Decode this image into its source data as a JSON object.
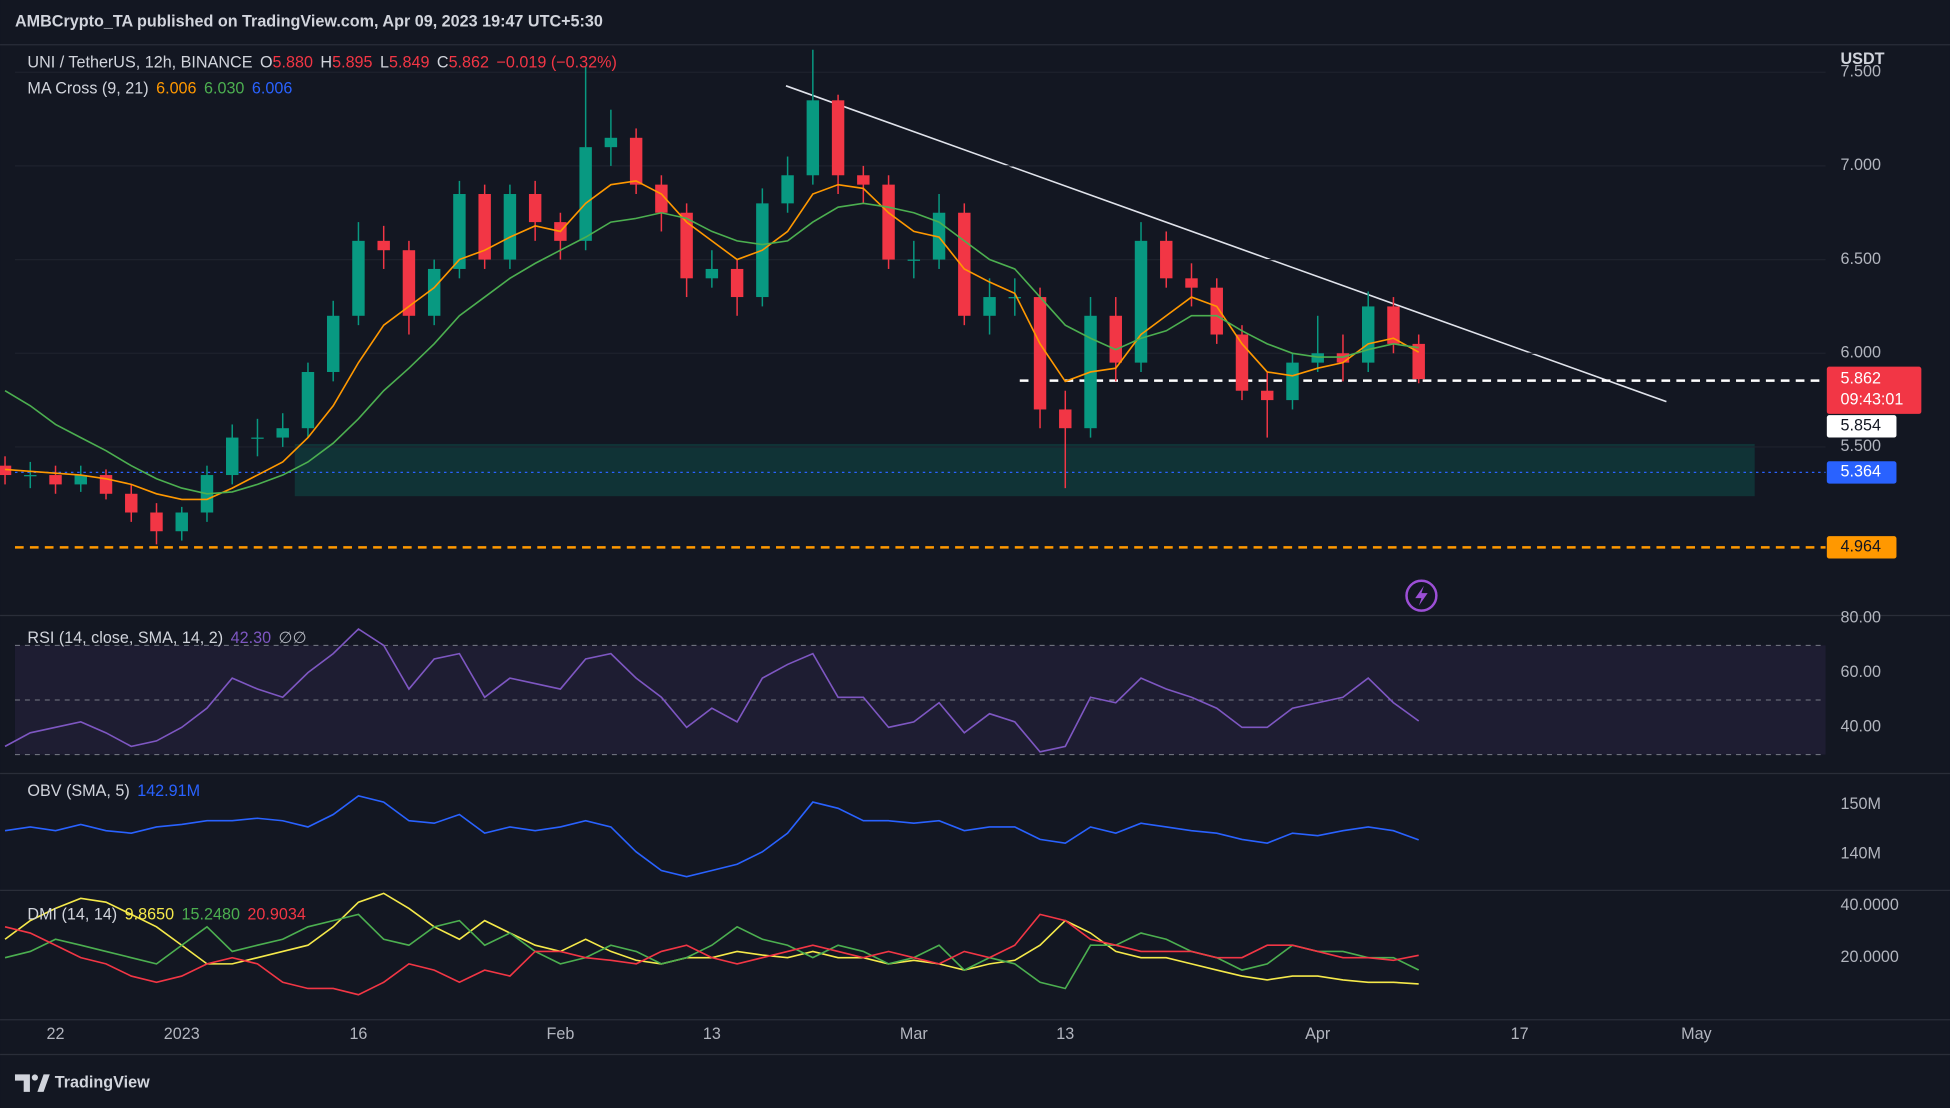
{
  "header": {
    "publisher": "AMBCrypto_TA published on TradingView.com, Apr 09, 2023 19:47 UTC+5:30"
  },
  "footer": {
    "brand": "TradingView"
  },
  "chart_data": [
    {
      "type": "candlestick",
      "unit": "USDT",
      "legend": [
        {
          "name": "UNI / TetherUS, 12h, BINANCE",
          "values": [
            {
              "text": "O",
              "color": "#d1d4dc"
            },
            {
              "text": "5.880",
              "color": "#f23645"
            },
            {
              "text": "H",
              "color": "#d1d4dc"
            },
            {
              "text": "5.895",
              "color": "#f23645"
            },
            {
              "text": "L",
              "color": "#d1d4dc"
            },
            {
              "text": "5.849",
              "color": "#f23645"
            },
            {
              "text": "C",
              "color": "#d1d4dc"
            },
            {
              "text": "5.862",
              "color": "#f23645"
            },
            {
              "text": "−0.019 (−0.32%)",
              "color": "#f23645"
            }
          ]
        },
        {
          "name": "MA Cross (9, 21)",
          "values": [
            {
              "text": "6.006",
              "color": "#ff9800"
            },
            {
              "text": "6.030",
              "color": "#4caf50"
            },
            {
              "text": "6.006",
              "color": "#2962ff"
            }
          ]
        }
      ],
      "categories": [
        null,
        null,
        "22",
        null,
        null,
        null,
        null,
        "2023",
        null,
        null,
        null,
        null,
        null,
        null,
        "16",
        null,
        null,
        null,
        null,
        null,
        null,
        null,
        "Feb",
        null,
        null,
        null,
        null,
        null,
        "13",
        null,
        null,
        null,
        null,
        null,
        null,
        null,
        "Mar",
        null,
        null,
        null,
        null,
        null,
        "13",
        null,
        null,
        null,
        null,
        null,
        null,
        null,
        null,
        null,
        "Apr",
        null,
        null,
        null,
        null,
        null,
        null,
        null,
        "17",
        null,
        null,
        null,
        null,
        null,
        null,
        "May"
      ],
      "open": [
        5.4,
        5.35,
        5.35,
        5.3,
        5.35,
        5.25,
        5.15,
        5.05,
        5.15,
        5.35,
        5.55,
        5.55,
        5.6,
        5.9,
        6.2,
        6.6,
        6.55,
        6.2,
        6.45,
        6.85,
        6.5,
        6.85,
        6.7,
        6.6,
        7.1,
        7.15,
        6.9,
        6.75,
        6.4,
        6.45,
        6.3,
        6.8,
        6.95,
        7.35,
        6.95,
        6.9,
        6.5,
        6.5,
        6.75,
        6.2,
        6.3,
        6.3,
        5.7,
        5.6,
        6.2,
        5.95,
        6.6,
        6.4,
        6.35,
        6.1,
        5.8,
        5.75,
        5.95,
        6.0,
        5.95,
        6.25,
        6.05,
        null,
        null,
        null,
        null,
        null,
        null,
        null,
        null,
        null,
        null,
        null
      ],
      "high": [
        5.45,
        5.42,
        5.4,
        5.4,
        5.38,
        5.3,
        5.2,
        5.18,
        5.4,
        5.62,
        5.65,
        5.68,
        5.95,
        6.28,
        6.7,
        6.68,
        6.6,
        6.5,
        6.92,
        6.9,
        6.9,
        6.92,
        6.75,
        7.53,
        7.3,
        7.2,
        6.95,
        6.8,
        6.55,
        6.5,
        6.88,
        7.05,
        7.62,
        7.38,
        7.0,
        6.95,
        6.6,
        6.85,
        6.8,
        6.4,
        6.4,
        6.35,
        5.8,
        6.3,
        6.3,
        6.7,
        6.65,
        6.48,
        6.4,
        6.15,
        5.9,
        6.0,
        6.2,
        6.1,
        6.33,
        6.3,
        6.1,
        null,
        null,
        null,
        null,
        null,
        null,
        null,
        null,
        null,
        null,
        null
      ],
      "low": [
        5.3,
        5.28,
        5.25,
        5.26,
        5.22,
        5.1,
        4.98,
        5.0,
        5.1,
        5.3,
        5.45,
        5.5,
        5.55,
        5.85,
        6.15,
        6.45,
        6.1,
        6.15,
        6.4,
        6.45,
        6.45,
        6.6,
        6.5,
        6.55,
        7.0,
        6.85,
        6.65,
        6.3,
        6.35,
        6.2,
        6.25,
        6.75,
        6.9,
        6.85,
        6.8,
        6.45,
        6.4,
        6.45,
        6.15,
        6.1,
        6.2,
        5.6,
        5.28,
        5.55,
        5.85,
        5.9,
        6.35,
        6.25,
        6.05,
        5.75,
        5.55,
        5.7,
        5.9,
        5.85,
        5.9,
        6.0,
        5.84,
        null,
        null,
        null,
        null,
        null,
        null,
        null,
        null,
        null,
        null,
        null
      ],
      "close": [
        5.35,
        5.35,
        5.3,
        5.35,
        5.25,
        5.15,
        5.05,
        5.15,
        5.35,
        5.55,
        5.55,
        5.6,
        5.9,
        6.2,
        6.6,
        6.55,
        6.2,
        6.45,
        6.85,
        6.5,
        6.85,
        6.7,
        6.6,
        7.1,
        7.15,
        6.9,
        6.75,
        6.4,
        6.45,
        6.3,
        6.8,
        6.95,
        7.35,
        6.95,
        6.9,
        6.5,
        6.5,
        6.75,
        6.2,
        6.3,
        6.3,
        5.7,
        5.6,
        6.2,
        5.95,
        6.6,
        6.4,
        6.35,
        6.1,
        5.8,
        5.75,
        5.95,
        6.0,
        5.95,
        6.25,
        6.05,
        5.862,
        null,
        null,
        null,
        null,
        null,
        null,
        null,
        null,
        null,
        null,
        null
      ],
      "up_color": "#089981",
      "down_color": "#f23645",
      "series": [
        {
          "color": "#ff9800",
          "values": [
            5.38,
            5.37,
            5.36,
            5.35,
            5.33,
            5.3,
            5.25,
            5.22,
            5.22,
            5.28,
            5.35,
            5.42,
            5.55,
            5.72,
            5.95,
            6.15,
            6.25,
            6.35,
            6.5,
            6.55,
            6.62,
            6.68,
            6.65,
            6.8,
            6.9,
            6.92,
            6.85,
            6.7,
            6.6,
            6.5,
            6.55,
            6.65,
            6.85,
            6.9,
            6.88,
            6.75,
            6.65,
            6.62,
            6.45,
            6.38,
            6.32,
            6.05,
            5.85,
            5.9,
            5.92,
            6.1,
            6.2,
            6.3,
            6.25,
            6.05,
            5.9,
            5.88,
            5.92,
            5.95,
            6.05,
            6.08,
            6.006,
            null,
            null,
            null,
            null,
            null,
            null,
            null,
            null,
            null,
            null,
            null
          ]
        },
        {
          "color": "#4caf50",
          "values": [
            5.8,
            5.72,
            5.62,
            5.55,
            5.48,
            5.4,
            5.33,
            5.28,
            5.25,
            5.26,
            5.3,
            5.35,
            5.42,
            5.52,
            5.65,
            5.8,
            5.92,
            6.05,
            6.2,
            6.3,
            6.4,
            6.48,
            6.55,
            6.62,
            6.7,
            6.72,
            6.75,
            6.72,
            6.65,
            6.6,
            6.58,
            6.6,
            6.7,
            6.78,
            6.8,
            6.78,
            6.75,
            6.7,
            6.6,
            6.5,
            6.45,
            6.3,
            6.15,
            6.08,
            6.02,
            6.08,
            6.12,
            6.2,
            6.2,
            6.12,
            6.05,
            6.0,
            5.98,
            5.98,
            6.02,
            6.05,
            6.03,
            null,
            null,
            null,
            null,
            null,
            null,
            null,
            null,
            null,
            null,
            null
          ]
        }
      ],
      "last_price": {
        "value": 5.862,
        "countdown": "09:43:01",
        "color": "#f23645",
        "text_color": "#ffffff"
      },
      "price_lines": [
        {
          "value": 5.854,
          "color": "#ffffff",
          "text_color": "#131722",
          "dash": "dashed"
        },
        {
          "value": 5.364,
          "color": "#2962ff",
          "text_color": "#ffffff",
          "dash": "dotted"
        },
        {
          "value": 4.964,
          "color": "#ff9800",
          "text_color": "#131722",
          "dash": "dashed"
        }
      ],
      "ylim": [
        4.6,
        7.62
      ],
      "yticks": [
        {
          "value": 7.5,
          "label": "7.500"
        },
        {
          "value": 7,
          "label": "7.000"
        },
        {
          "value": 6.5,
          "label": "6.500"
        },
        {
          "value": 6,
          "label": "6.000"
        },
        {
          "value": 5.5,
          "label": "5.500"
        }
      ],
      "grid": true
    },
    {
      "type": "line",
      "legend": [
        {
          "name": "RSI (14, close, SMA, 14, 2)",
          "values": [
            {
              "text": "42.30",
              "color": "#7e57c2"
            },
            {
              "text": "∅",
              "color": "#b2b5be"
            },
            {
              "text": "∅",
              "color": "#b2b5be"
            }
          ]
        }
      ],
      "series": [
        {
          "color": "#7e57c2",
          "values": [
            33,
            38,
            40,
            42,
            38,
            33,
            35,
            40,
            47,
            58,
            54,
            51,
            60,
            67,
            76,
            70,
            54,
            65,
            67,
            51,
            58,
            56,
            54,
            65,
            67,
            58,
            51,
            40,
            47,
            42,
            58,
            63,
            67,
            51,
            51,
            40,
            42,
            49,
            38,
            45,
            42,
            31,
            33,
            51,
            49,
            58,
            54,
            51,
            47,
            40,
            40,
            47,
            49,
            51,
            58,
            49,
            42.3,
            null,
            null,
            null,
            null,
            null,
            null,
            null,
            null,
            null,
            null,
            null
          ]
        }
      ],
      "levels": [
        70,
        50,
        30
      ],
      "band_color": "rgba(126,87,194,0.10)",
      "ylim": [
        24,
        80
      ],
      "yticks": [
        {
          "value": 80,
          "label": "80.00"
        },
        {
          "value": 60,
          "label": "60.00"
        },
        {
          "value": 40,
          "label": "40.00"
        }
      ],
      "grid": false
    },
    {
      "type": "line",
      "legend": [
        {
          "name": "OBV (SMA, 5)",
          "values": [
            {
              "text": "142.91M",
              "color": "#2962ff"
            }
          ]
        }
      ],
      "series": [
        {
          "color": "#2962ff",
          "values": [
            144750000,
            145500000,
            144750000,
            146000000,
            144750000,
            144250000,
            145500000,
            146000000,
            146750000,
            146750000,
            147250000,
            146750000,
            145500000,
            148000000,
            151750000,
            150500000,
            146750000,
            146250000,
            148000000,
            144250000,
            145500000,
            144750000,
            145500000,
            146750000,
            145500000,
            140500000,
            136750000,
            135500000,
            136750000,
            138000000,
            140500000,
            144250000,
            150500000,
            149250000,
            146750000,
            146750000,
            146250000,
            146750000,
            144750000,
            145500000,
            145500000,
            143000000,
            142250000,
            145500000,
            144250000,
            146250000,
            145500000,
            144750000,
            144250000,
            143000000,
            142250000,
            144250000,
            143750000,
            144750000,
            145500000,
            144750000,
            142910000,
            null,
            null,
            null,
            null,
            null,
            null,
            null,
            null,
            null,
            null,
            null
          ]
        }
      ],
      "ylim": [
        133000000,
        155500000
      ],
      "yticks": [
        {
          "value": 150000000,
          "label": "150M"
        },
        {
          "value": 140000000,
          "label": "140M"
        }
      ],
      "grid": false
    },
    {
      "type": "line",
      "legend": [
        {
          "name": "DMI (14, 14)",
          "values": [
            {
              "text": "9.8650",
              "color": "#f5e94a"
            },
            {
              "text": "15.2480",
              "color": "#4caf50"
            },
            {
              "text": "20.9034",
              "color": "#f23645"
            }
          ]
        }
      ],
      "series": [
        {
          "color": "#f5e94a",
          "values": [
            27.1,
            34.3,
            39.0,
            42.9,
            41.4,
            36.7,
            31.9,
            24.8,
            17.6,
            17.6,
            20.0,
            22.4,
            24.8,
            31.9,
            41.4,
            44.8,
            39.0,
            31.9,
            27.1,
            34.3,
            29.5,
            24.8,
            22.4,
            27.1,
            22.4,
            19.0,
            17.6,
            20.0,
            20.0,
            22.4,
            21.0,
            20.0,
            22.4,
            20.0,
            20.0,
            17.6,
            19.0,
            17.6,
            15.2,
            17.6,
            19.0,
            24.8,
            34.3,
            29.5,
            22.4,
            20.0,
            20.0,
            17.6,
            15.2,
            12.9,
            11.4,
            12.9,
            12.9,
            11.4,
            10.5,
            10.5,
            9.865,
            null,
            null,
            null,
            null,
            null,
            null,
            null,
            null,
            null,
            null,
            null
          ]
        },
        {
          "color": "#4caf50",
          "values": [
            20.0,
            22.4,
            27.1,
            24.8,
            22.4,
            20.0,
            17.6,
            24.8,
            31.9,
            22.4,
            24.8,
            27.1,
            31.9,
            34.3,
            36.7,
            27.1,
            24.8,
            31.9,
            34.3,
            24.8,
            29.5,
            22.4,
            17.6,
            20.0,
            24.8,
            22.4,
            17.6,
            20.0,
            24.8,
            31.9,
            27.1,
            24.8,
            20.0,
            24.8,
            22.4,
            17.6,
            20.0,
            24.8,
            15.2,
            20.0,
            17.6,
            10.5,
            8.1,
            24.8,
            24.8,
            29.5,
            27.1,
            22.4,
            20.0,
            15.2,
            17.6,
            24.8,
            22.4,
            22.4,
            20.0,
            20.0,
            15.248,
            null,
            null,
            null,
            null,
            null,
            null,
            null,
            null,
            null,
            null,
            null
          ]
        },
        {
          "color": "#f23645",
          "values": [
            31.9,
            29.5,
            24.8,
            20.0,
            17.6,
            12.9,
            10.5,
            12.9,
            17.6,
            20.0,
            17.6,
            10.5,
            8.1,
            8.1,
            5.7,
            10.5,
            17.6,
            15.2,
            10.5,
            15.2,
            12.9,
            22.4,
            22.4,
            20.0,
            19.0,
            17.6,
            22.4,
            24.8,
            20.0,
            17.6,
            20.0,
            22.4,
            24.8,
            22.4,
            20.0,
            22.4,
            20.0,
            17.6,
            22.4,
            20.0,
            24.8,
            36.7,
            34.3,
            27.1,
            24.8,
            22.4,
            22.4,
            22.4,
            20.0,
            20.0,
            24.8,
            24.8,
            22.4,
            20.0,
            20.0,
            19.0,
            20.9034,
            null,
            null,
            null,
            null,
            null,
            null,
            null,
            null,
            null,
            null,
            null
          ]
        }
      ],
      "ylim": [
        -3,
        45
      ],
      "yticks": [
        {
          "value": 40,
          "label": "40.0000"
        },
        {
          "value": 20,
          "label": "20.0000"
        }
      ],
      "grid": false
    }
  ]
}
